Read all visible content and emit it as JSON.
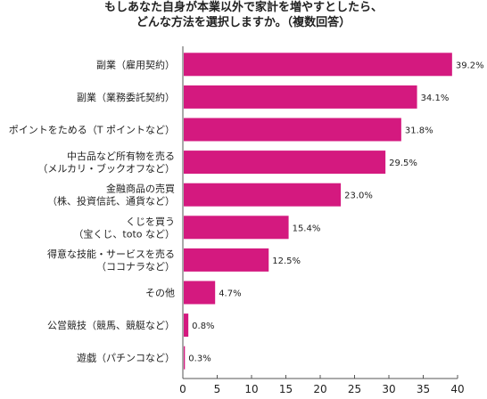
{
  "chart_data": {
    "type": "bar",
    "orientation": "horizontal",
    "title_lines": [
      "もしあなた自身が本業以外で家計を増やすとしたら、",
      "どんな方法を選択しますか。（複数回答）"
    ],
    "categories": [
      [
        "副業（雇用契約）"
      ],
      [
        "副業（業務委託契約）"
      ],
      [
        "ポイントをためる（T ポイントなど）"
      ],
      [
        "中古品など所有物を売る",
        "（メルカリ・ブックオフなど）"
      ],
      [
        "金融商品の売買",
        "（株、投資信託、通貨など）"
      ],
      [
        "くじを買う",
        "（宝くじ、toto など）"
      ],
      [
        "得意な技能・サービスを売る",
        "（ココナラなど）"
      ],
      [
        "その他"
      ],
      [
        "公営競技（競馬、競艇など）"
      ],
      [
        "遊戯（パチンコなど）"
      ]
    ],
    "values": [
      39.2,
      34.1,
      31.8,
      29.5,
      23.0,
      15.4,
      12.5,
      4.7,
      0.8,
      0.3
    ],
    "value_labels": [
      "39.2%",
      "34.1%",
      "31.8%",
      "29.5%",
      "23.0%",
      "15.4%",
      "12.5%",
      "4.7%",
      "0.8%",
      "0.3%"
    ],
    "xlim": [
      0,
      40
    ],
    "xticks": [
      0,
      5,
      10,
      15,
      20,
      25,
      30,
      35,
      40
    ],
    "grid": false,
    "bar_color": "#d4197f"
  }
}
